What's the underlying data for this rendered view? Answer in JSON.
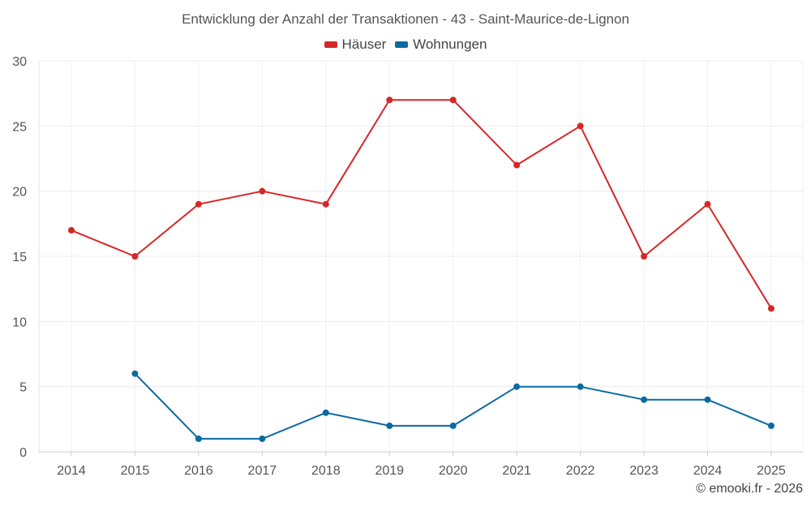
{
  "chart_data": {
    "type": "line",
    "title": "Entwicklung der Anzahl der Transaktionen - 43 - Saint-Maurice-de-Lignon",
    "xlabel": "",
    "ylabel": "",
    "x": [
      "2014",
      "2015",
      "2016",
      "2017",
      "2018",
      "2019",
      "2020",
      "2021",
      "2022",
      "2023",
      "2024",
      "2025"
    ],
    "ylim": [
      0,
      30
    ],
    "yticks": [
      0,
      5,
      10,
      15,
      20,
      25,
      30
    ],
    "grid": true,
    "legend_position": "top-center",
    "series": [
      {
        "name": "Häuser",
        "color": "#d62728",
        "values": [
          17,
          15,
          19,
          20,
          19,
          27,
          27,
          22,
          25,
          15,
          19,
          11
        ]
      },
      {
        "name": "Wohnungen",
        "color": "#0b6aa2",
        "values": [
          null,
          6,
          1,
          1,
          3,
          2,
          2,
          5,
          5,
          4,
          4,
          2
        ]
      }
    ]
  },
  "credit": "© emooki.fr - 2026"
}
